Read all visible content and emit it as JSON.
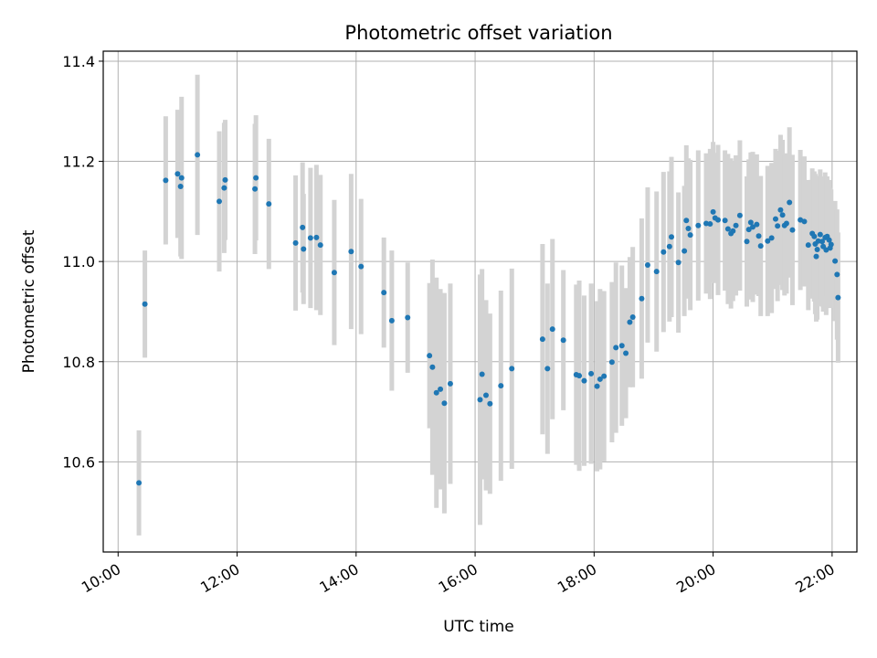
{
  "chart_data": {
    "type": "scatter",
    "title": "Photometric offset variation",
    "xlabel": "UTC time",
    "ylabel": "Photometric offset",
    "x_unit": "UTC hours",
    "xlim": [
      "09:45",
      "22:25"
    ],
    "ylim": [
      10.42,
      11.42
    ],
    "x_ticks": [
      "10:00",
      "12:00",
      "14:00",
      "16:00",
      "18:00",
      "20:00",
      "22:00"
    ],
    "y_ticks": [
      "10.6",
      "10.8",
      "11.0",
      "11.2",
      "11.4"
    ],
    "grid": true,
    "point_color": "#1f77b4",
    "errorbar_color": "#d3d3d3",
    "points": [
      [
        "10:21",
        10.558,
        0.105
      ],
      [
        "10:27",
        10.915,
        0.107
      ],
      [
        "10:48",
        11.162,
        0.128
      ],
      [
        "11:00",
        11.175,
        0.128
      ],
      [
        "11:03",
        11.15,
        0.14
      ],
      [
        "11:04",
        11.167,
        0.162
      ],
      [
        "11:20",
        11.213,
        0.16
      ],
      [
        "11:42",
        11.12,
        0.14
      ],
      [
        "11:47",
        11.147,
        0.13
      ],
      [
        "11:48",
        11.163,
        0.12
      ],
      [
        "12:18",
        11.145,
        0.13
      ],
      [
        "12:19",
        11.167,
        0.125
      ],
      [
        "12:32",
        11.115,
        0.13
      ],
      [
        "12:59",
        11.037,
        0.135
      ],
      [
        "13:06",
        11.068,
        0.13
      ],
      [
        "13:07",
        11.025,
        0.11
      ],
      [
        "13:14",
        11.047,
        0.14
      ],
      [
        "13:20",
        11.048,
        0.145
      ],
      [
        "13:24",
        11.033,
        0.14
      ],
      [
        "13:38",
        10.978,
        0.145
      ],
      [
        "13:55",
        11.02,
        0.155
      ],
      [
        "14:05",
        10.99,
        0.135
      ],
      [
        "14:28",
        10.938,
        0.11
      ],
      [
        "14:36",
        10.882,
        0.14
      ],
      [
        "14:52",
        10.888,
        0.11
      ],
      [
        "15:14",
        10.812,
        0.145
      ],
      [
        "15:17",
        10.789,
        0.215
      ],
      [
        "15:21",
        10.738,
        0.23
      ],
      [
        "15:25",
        10.745,
        0.2
      ],
      [
        "15:29",
        10.717,
        0.22
      ],
      [
        "15:35",
        10.756,
        0.2
      ],
      [
        "16:05",
        10.724,
        0.25
      ],
      [
        "16:07",
        10.775,
        0.21
      ],
      [
        "16:11",
        10.733,
        0.19
      ],
      [
        "16:15",
        10.716,
        0.18
      ],
      [
        "16:26",
        10.752,
        0.19
      ],
      [
        "16:37",
        10.786,
        0.2
      ],
      [
        "17:08",
        10.845,
        0.19
      ],
      [
        "17:13",
        10.786,
        0.17
      ],
      [
        "17:18",
        10.865,
        0.18
      ],
      [
        "17:29",
        10.843,
        0.14
      ],
      [
        "17:42",
        10.774,
        0.18
      ],
      [
        "17:45",
        10.772,
        0.19
      ],
      [
        "17:50",
        10.762,
        0.17
      ],
      [
        "17:57",
        10.776,
        0.18
      ],
      [
        "18:03",
        10.751,
        0.17
      ],
      [
        "18:06",
        10.765,
        0.18
      ],
      [
        "18:10",
        10.771,
        0.17
      ],
      [
        "18:18",
        10.799,
        0.16
      ],
      [
        "18:22",
        10.828,
        0.17
      ],
      [
        "18:28",
        10.832,
        0.16
      ],
      [
        "18:32",
        10.817,
        0.13
      ],
      [
        "18:36",
        10.879,
        0.13
      ],
      [
        "18:39",
        10.889,
        0.14
      ],
      [
        "18:48",
        10.926,
        0.16
      ],
      [
        "18:54",
        10.993,
        0.155
      ],
      [
        "19:03",
        10.98,
        0.16
      ],
      [
        "19:10",
        11.019,
        0.16
      ],
      [
        "19:16",
        11.03,
        0.15
      ],
      [
        "19:18",
        11.049,
        0.16
      ],
      [
        "19:25",
        10.998,
        0.14
      ],
      [
        "19:31",
        11.021,
        0.13
      ],
      [
        "19:33",
        11.082,
        0.15
      ],
      [
        "19:35",
        11.066,
        0.14
      ],
      [
        "19:37",
        11.053,
        0.15
      ],
      [
        "19:45",
        11.072,
        0.15
      ],
      [
        "19:53",
        11.076,
        0.14
      ],
      [
        "19:57",
        11.075,
        0.15
      ],
      [
        "20:00",
        11.099,
        0.14
      ],
      [
        "20:02",
        11.087,
        0.13
      ],
      [
        "20:05",
        11.083,
        0.15
      ],
      [
        "20:12",
        11.082,
        0.14
      ],
      [
        "20:15",
        11.065,
        0.15
      ],
      [
        "20:18",
        11.056,
        0.15
      ],
      [
        "20:20",
        11.061,
        0.14
      ],
      [
        "20:23",
        11.072,
        0.14
      ],
      [
        "20:27",
        11.092,
        0.15
      ],
      [
        "20:34",
        11.04,
        0.13
      ],
      [
        "20:36",
        11.064,
        0.14
      ],
      [
        "20:38",
        11.078,
        0.14
      ],
      [
        "20:40",
        11.069,
        0.15
      ],
      [
        "20:44",
        11.074,
        0.14
      ],
      [
        "20:46",
        11.051,
        0.12
      ],
      [
        "20:48",
        11.031,
        0.14
      ],
      [
        "20:55",
        11.041,
        0.15
      ],
      [
        "20:59",
        11.047,
        0.15
      ],
      [
        "21:03",
        11.085,
        0.14
      ],
      [
        "21:05",
        11.071,
        0.15
      ],
      [
        "21:08",
        11.103,
        0.15
      ],
      [
        "21:10",
        11.093,
        0.15
      ],
      [
        "21:12",
        11.072,
        0.14
      ],
      [
        "21:14",
        11.076,
        0.14
      ],
      [
        "21:17",
        11.118,
        0.15
      ],
      [
        "21:20",
        11.063,
        0.15
      ],
      [
        "21:28",
        11.083,
        0.14
      ],
      [
        "21:32",
        11.08,
        0.13
      ],
      [
        "21:36",
        11.033,
        0.13
      ],
      [
        "21:40",
        11.056,
        0.13
      ],
      [
        "21:42",
        11.05,
        0.13
      ],
      [
        "21:43",
        11.035,
        0.14
      ],
      [
        "21:44",
        11.01,
        0.13
      ],
      [
        "21:45",
        11.024,
        0.14
      ],
      [
        "21:46",
        11.041,
        0.13
      ],
      [
        "21:48",
        11.054,
        0.13
      ],
      [
        "21:50",
        11.04,
        0.13
      ],
      [
        "21:51",
        11.03,
        0.13
      ],
      [
        "21:53",
        11.048,
        0.13
      ],
      [
        "21:54",
        11.023,
        0.13
      ],
      [
        "21:55",
        11.05,
        0.12
      ],
      [
        "21:57",
        11.043,
        0.12
      ],
      [
        "21:58",
        11.027,
        0.12
      ],
      [
        "21:59",
        11.034,
        0.11
      ],
      [
        "22:03",
        11.001,
        0.12
      ],
      [
        "22:05",
        10.974,
        0.13
      ],
      [
        "22:06",
        10.928,
        0.13
      ]
    ]
  }
}
